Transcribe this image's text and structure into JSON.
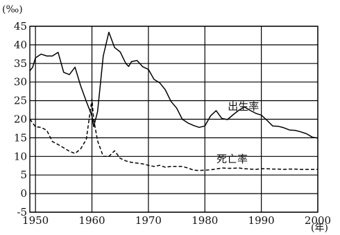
{
  "chart_data": {
    "type": "line",
    "title": "",
    "ylabel": "(‰)",
    "xlabel": "(年)",
    "xlim": [
      1949,
      2000
    ],
    "ylim": [
      -5,
      45
    ],
    "grid": true,
    "x_ticks": [
      1950,
      1960,
      1970,
      1980,
      1990,
      2000
    ],
    "y_ticks": [
      -5,
      0,
      5,
      10,
      15,
      20,
      25,
      30,
      35,
      40,
      45
    ],
    "x_tick_labels": [
      "1950",
      "1960",
      "1970",
      "1980",
      "1990",
      "2000"
    ],
    "y_tick_labels": [
      "-5",
      "0",
      "5",
      "10",
      "15",
      "20",
      "25",
      "30",
      "35",
      "40",
      "45"
    ],
    "series": [
      {
        "name": "出生率",
        "style": "solid",
        "color": "#000000",
        "points": [
          [
            1949,
            33
          ],
          [
            1949.5,
            34
          ],
          [
            1950,
            36.5
          ],
          [
            1951,
            37.5
          ],
          [
            1952,
            37
          ],
          [
            1953,
            37
          ],
          [
            1954,
            38
          ],
          [
            1955,
            32.6
          ],
          [
            1956,
            32
          ],
          [
            1957,
            34
          ],
          [
            1958,
            29
          ],
          [
            1959,
            24.8
          ],
          [
            1960,
            20.9
          ],
          [
            1960.3,
            18
          ],
          [
            1961,
            22
          ],
          [
            1962,
            37
          ],
          [
            1963,
            43.4
          ],
          [
            1964,
            39.3
          ],
          [
            1965,
            38.1
          ],
          [
            1966,
            35
          ],
          [
            1966.5,
            34.2
          ],
          [
            1967,
            35.5
          ],
          [
            1968,
            35.8
          ],
          [
            1969,
            34.1
          ],
          [
            1970,
            33.4
          ],
          [
            1971,
            30.7
          ],
          [
            1972,
            29.8
          ],
          [
            1973,
            27.9
          ],
          [
            1974,
            24.8
          ],
          [
            1975,
            23
          ],
          [
            1976,
            20
          ],
          [
            1977,
            19
          ],
          [
            1978,
            18.3
          ],
          [
            1979,
            17.8
          ],
          [
            1980,
            18.2
          ],
          [
            1981,
            20.9
          ],
          [
            1982,
            22.3
          ],
          [
            1983,
            20.2
          ],
          [
            1984,
            19.9
          ],
          [
            1985,
            21.2
          ],
          [
            1986,
            22.4
          ],
          [
            1987,
            23.3
          ],
          [
            1988,
            22.4
          ],
          [
            1989,
            21.6
          ],
          [
            1990,
            21.1
          ],
          [
            1991,
            19.7
          ],
          [
            1992,
            18.2
          ],
          [
            1993,
            18.1
          ],
          [
            1994,
            17.7
          ],
          [
            1995,
            17.1
          ],
          [
            1996,
            17
          ],
          [
            1997,
            16.6
          ],
          [
            1998,
            16.1
          ],
          [
            1999,
            15.2
          ],
          [
            2000,
            14.9
          ]
        ]
      },
      {
        "name": "死亡率",
        "style": "dashed",
        "color": "#000000",
        "points": [
          [
            1949,
            20
          ],
          [
            1950,
            18
          ],
          [
            1951,
            17.8
          ],
          [
            1952,
            17
          ],
          [
            1953,
            14
          ],
          [
            1954,
            13.2
          ],
          [
            1955,
            12.3
          ],
          [
            1956,
            11.4
          ],
          [
            1957,
            10.8
          ],
          [
            1958,
            12
          ],
          [
            1959,
            14.6
          ],
          [
            1959.5,
            20
          ],
          [
            1960,
            25.4
          ],
          [
            1960.3,
            20
          ],
          [
            1961,
            14.2
          ],
          [
            1962,
            10
          ],
          [
            1963,
            10
          ],
          [
            1964,
            11.5
          ],
          [
            1965,
            9.5
          ],
          [
            1966,
            8.8
          ],
          [
            1967,
            8.4
          ],
          [
            1968,
            8.2
          ],
          [
            1969,
            8
          ],
          [
            1970,
            7.6
          ],
          [
            1971,
            7.3
          ],
          [
            1972,
            7.6
          ],
          [
            1973,
            7.1
          ],
          [
            1974,
            7.3
          ],
          [
            1975,
            7.3
          ],
          [
            1976,
            7.3
          ],
          [
            1977,
            6.9
          ],
          [
            1978,
            6.3
          ],
          [
            1979,
            6.2
          ],
          [
            1980,
            6.3
          ],
          [
            1981,
            6.4
          ],
          [
            1982,
            6.6
          ],
          [
            1983,
            6.9
          ],
          [
            1984,
            6.8
          ],
          [
            1985,
            6.8
          ],
          [
            1986,
            6.9
          ],
          [
            1987,
            6.7
          ],
          [
            1988,
            6.6
          ],
          [
            1989,
            6.5
          ],
          [
            1990,
            6.7
          ],
          [
            1991,
            6.7
          ],
          [
            1992,
            6.6
          ],
          [
            1993,
            6.6
          ],
          [
            1994,
            6.5
          ],
          [
            1995,
            6.6
          ],
          [
            1996,
            6.6
          ],
          [
            1997,
            6.5
          ],
          [
            1998,
            6.5
          ],
          [
            1999,
            6.5
          ],
          [
            2000,
            6.5
          ]
        ]
      }
    ],
    "annotations": [
      {
        "text": "出生率",
        "x": 1987,
        "y": 22.5
      },
      {
        "text": "死亡率",
        "x": 1985,
        "y": 8.4
      }
    ]
  }
}
